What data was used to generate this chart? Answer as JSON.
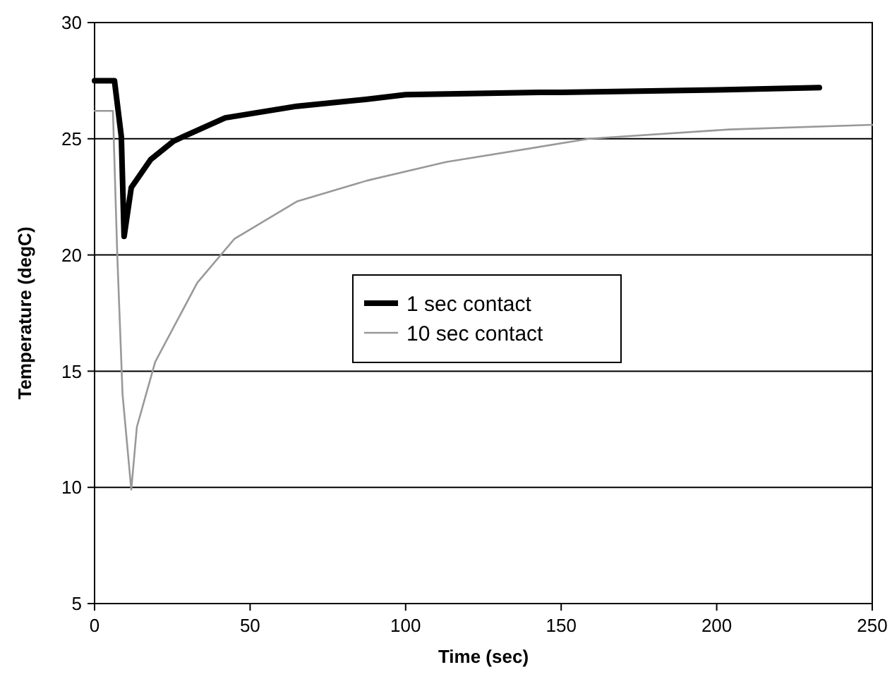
{
  "chart_data": {
    "type": "line",
    "xlabel": "Time (sec)",
    "ylabel": "Temperature (degC)",
    "xlim": [
      0,
      250
    ],
    "xticks": [
      0,
      50,
      100,
      150,
      200,
      250
    ],
    "ylim": [
      5,
      30
    ],
    "yticks": [
      5,
      10,
      15,
      20,
      25,
      30
    ],
    "grid": "y",
    "legend": "right",
    "marker": "none",
    "line_style": "solid",
    "series": [
      {
        "name": "1 sec contact",
        "color": "#000000",
        "x": [
          0,
          6.4,
          8.6,
          9.5,
          11.8,
          18,
          25.4,
          42,
          65,
          87.6,
          100,
          143,
          150,
          200,
          233
        ],
        "values": [
          27.5,
          27.5,
          25.1,
          20.8,
          22.9,
          24.1,
          24.9,
          25.9,
          26.4,
          26.7,
          26.9,
          27.0,
          27.0,
          27.1,
          27.2
        ]
      },
      {
        "name": "10 sec contact",
        "color": "#999999",
        "x": [
          0,
          5.9,
          7.3,
          9,
          11.8,
          13.6,
          19.5,
          33,
          45,
          65,
          87.6,
          113,
          159,
          204,
          250
        ],
        "values": [
          26.2,
          26.2,
          20,
          14,
          9.9,
          12.6,
          15.4,
          18.8,
          20.7,
          22.3,
          23.2,
          24.0,
          25.0,
          25.4,
          25.6
        ]
      }
    ]
  }
}
